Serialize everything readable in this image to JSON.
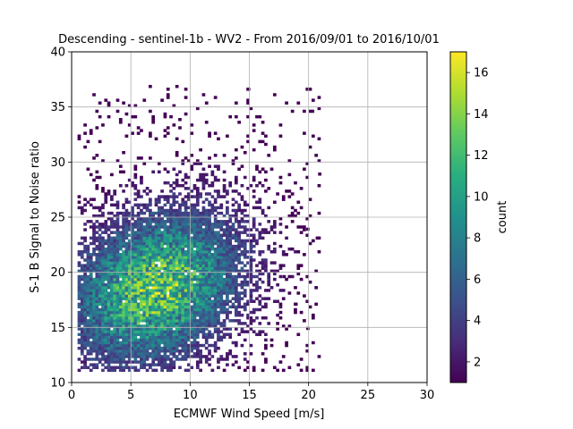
{
  "chart_data": {
    "type": "heatmap",
    "title": "Descending - sentinel-1b - WV2 - From 2016/09/01 to 2016/10/01",
    "xlabel": "ECMWF Wind Speed [m/s]",
    "ylabel": "S-1 B Signal to Noise ratio",
    "xlim": [
      0,
      30
    ],
    "ylim": [
      10,
      40
    ],
    "xticks": [
      "0",
      "5",
      "10",
      "15",
      "20",
      "25",
      "30"
    ],
    "yticks": [
      "10",
      "15",
      "20",
      "25",
      "30",
      "35",
      "40"
    ],
    "grid": true,
    "colormap": "viridis",
    "colorbar": {
      "label": "count",
      "range": [
        1,
        17
      ],
      "ticks": [
        "2",
        "4",
        "6",
        "8",
        "10",
        "12",
        "14",
        "16"
      ]
    },
    "bin_size": {
      "x": 0.25,
      "y": 0.25
    },
    "distribution_summary": {
      "peak_density_center": {
        "x": 7.0,
        "y": 18.5
      },
      "max_count": 17,
      "approx_extent": {
        "x_min": 0.5,
        "x_max": 21,
        "y_min": 11,
        "y_max": 37
      }
    },
    "outlier_points": [
      {
        "x": 14.8,
        "y": 36.5
      },
      {
        "x": 17.0,
        "y": 36.0
      },
      {
        "x": 20.2,
        "y": 34.5
      },
      {
        "x": 20.8,
        "y": 28.8
      },
      {
        "x": 20.0,
        "y": 25.0
      },
      {
        "x": 19.8,
        "y": 23.8
      },
      {
        "x": 19.8,
        "y": 14.8
      },
      {
        "x": 20.6,
        "y": 23.0
      },
      {
        "x": 18.8,
        "y": 17.0
      },
      {
        "x": 17.8,
        "y": 19.5
      }
    ]
  }
}
